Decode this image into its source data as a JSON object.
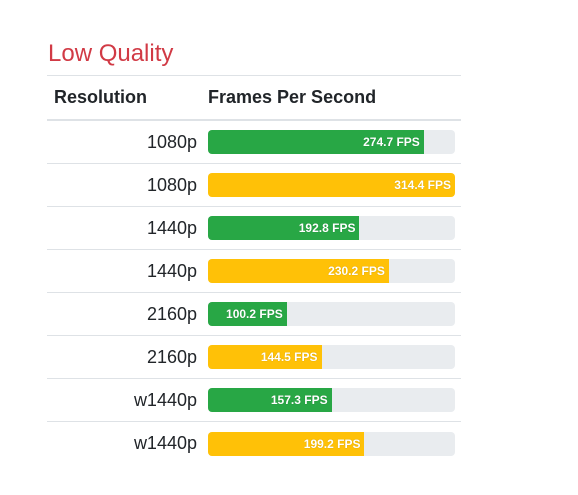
{
  "section": {
    "title": "Low Quality"
  },
  "table": {
    "headers": [
      "Resolution",
      "Frames Per Second"
    ],
    "max_fps": 314.4,
    "rows": [
      {
        "resolution": "1080p",
        "fps": 274.7,
        "label": "274.7 FPS",
        "color": "green"
      },
      {
        "resolution": "1080p",
        "fps": 314.4,
        "label": "314.4 FPS",
        "color": "yellow"
      },
      {
        "resolution": "1440p",
        "fps": 192.8,
        "label": "192.8 FPS",
        "color": "green"
      },
      {
        "resolution": "1440p",
        "fps": 230.2,
        "label": "230.2 FPS",
        "color": "yellow"
      },
      {
        "resolution": "2160p",
        "fps": 100.2,
        "label": "100.2 FPS",
        "color": "green"
      },
      {
        "resolution": "2160p",
        "fps": 144.5,
        "label": "144.5 FPS",
        "color": "yellow"
      },
      {
        "resolution": "w1440p",
        "fps": 157.3,
        "label": "157.3 FPS",
        "color": "green"
      },
      {
        "resolution": "w1440p",
        "fps": 199.2,
        "label": "199.2 FPS",
        "color": "yellow"
      }
    ]
  },
  "colors": {
    "title": "#d13a45",
    "green": "#28a745",
    "yellow": "#ffc107",
    "track": "#e9ecef"
  }
}
